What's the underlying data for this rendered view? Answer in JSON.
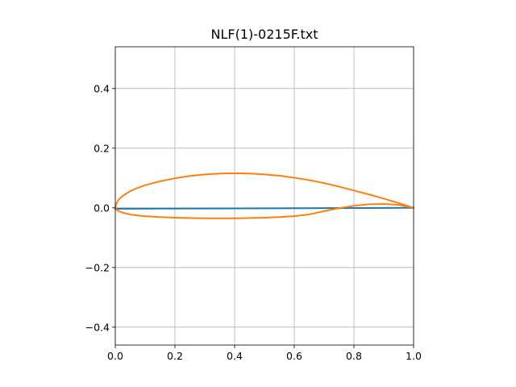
{
  "chart_data": {
    "type": "line",
    "title": "NLF(1)-0215F.txt",
    "xlabel": "",
    "ylabel": "",
    "xlim": [
      0.0,
      1.0
    ],
    "ylim": [
      -0.46,
      0.54
    ],
    "grid": true,
    "x_ticks": [
      0.0,
      0.2,
      0.4,
      0.6,
      0.8,
      1.0
    ],
    "x_tick_labels": [
      "0.0",
      "0.2",
      "0.4",
      "0.6",
      "0.8",
      "1.0"
    ],
    "y_ticks": [
      -0.4,
      -0.2,
      0.0,
      0.2,
      0.4
    ],
    "y_tick_labels": [
      "−0.4",
      "−0.2",
      "0.0",
      "0.2",
      "0.4"
    ],
    "series": [
      {
        "color": "#1f77b4",
        "x": [
          0.0,
          1.0
        ],
        "y": [
          -0.003,
          0.0
        ]
      },
      {
        "color": "#ff7f0e",
        "x": [
          1.0,
          0.95,
          0.9,
          0.85,
          0.8,
          0.75,
          0.7,
          0.65,
          0.6,
          0.55,
          0.5,
          0.45,
          0.4,
          0.35,
          0.3,
          0.25,
          0.2,
          0.15,
          0.1,
          0.075,
          0.05,
          0.025,
          0.0125,
          0.005,
          0.0,
          0.005,
          0.0125,
          0.025,
          0.05,
          0.075,
          0.1,
          0.15,
          0.2,
          0.25,
          0.3,
          0.35,
          0.4,
          0.45,
          0.5,
          0.55,
          0.6,
          0.65,
          0.7,
          0.75,
          0.8,
          0.85,
          0.9,
          0.95,
          1.0
        ],
        "y": [
          0.0,
          0.016,
          0.031,
          0.045,
          0.058,
          0.071,
          0.083,
          0.093,
          0.101,
          0.108,
          0.112,
          0.115,
          0.116,
          0.115,
          0.112,
          0.107,
          0.099,
          0.089,
          0.076,
          0.067,
          0.056,
          0.04,
          0.029,
          0.017,
          0.0,
          -0.007,
          -0.011,
          -0.016,
          -0.022,
          -0.026,
          -0.028,
          -0.031,
          -0.033,
          -0.034,
          -0.035,
          -0.035,
          -0.035,
          -0.034,
          -0.033,
          -0.031,
          -0.028,
          -0.022,
          -0.011,
          -0.001,
          0.007,
          0.012,
          0.013,
          0.01,
          0.0
        ]
      }
    ]
  }
}
